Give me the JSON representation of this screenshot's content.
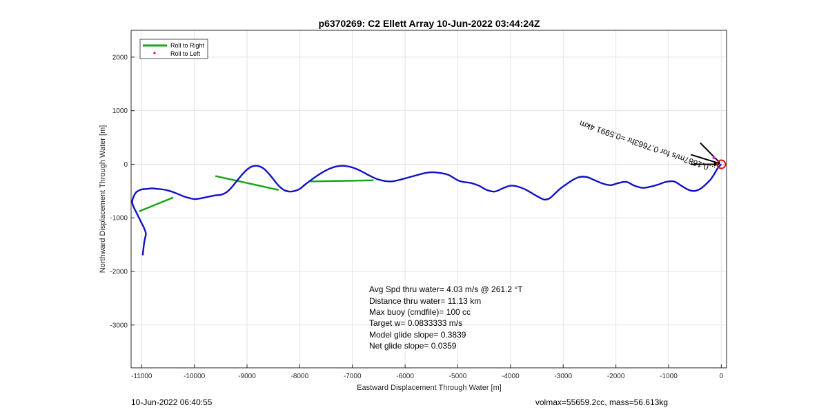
{
  "chart_data": {
    "type": "line",
    "title": "p6370269: C2 Ellett Array 10-Jun-2022 03:44:24Z",
    "xlabel": "Eastward Displacement Through Water [m]",
    "ylabel": "Northward Displacement Through Water [m]",
    "xlim": [
      -11200,
      100
    ],
    "ylim": [
      -3800,
      2500
    ],
    "xticks": [
      -11000,
      -10000,
      -9000,
      -8000,
      -7000,
      -6000,
      -5000,
      -4000,
      -3000,
      -2000,
      -1000,
      0
    ],
    "yticks": [
      2000,
      1000,
      0,
      -1000,
      -2000,
      -3000
    ],
    "grid": true,
    "legend_position": "top-left",
    "legend": [
      "Roll to Right",
      "Roll to Left"
    ],
    "series": [
      {
        "name": "track",
        "color": "#1010c8",
        "x": [
          0,
          -60,
          -120,
          -200,
          -300,
          -400,
          -520,
          -640,
          -760,
          -900,
          -1050,
          -1200,
          -1350,
          -1500,
          -1650,
          -1800,
          -1950,
          -2100,
          -2250,
          -2400,
          -2550,
          -2700,
          -2830,
          -2950,
          -3050,
          -3150,
          -3250,
          -3350,
          -3450,
          -3560,
          -3700,
          -3850,
          -4000,
          -4150,
          -4300,
          -4450,
          -4600,
          -4750,
          -4900,
          -5000,
          -5100,
          -5200,
          -5350,
          -5500,
          -5650,
          -5800,
          -5950,
          -6100,
          -6250,
          -6400,
          -6550,
          -6700,
          -6850,
          -7000,
          -7150,
          -7300,
          -7450,
          -7600,
          -7750,
          -7900,
          -8000,
          -8100,
          -8200,
          -8300,
          -8400,
          -8500,
          -8600,
          -8700,
          -8800,
          -8900,
          -9000,
          -9100,
          -9200,
          -9300,
          -9400,
          -9500,
          -9600,
          -9700,
          -9800,
          -9900,
          -10000,
          -10100,
          -10200,
          -10300,
          -10400,
          -10500,
          -10600,
          -10700,
          -10800,
          -10900,
          -11000,
          -11100,
          -11150,
          -11180,
          -11150,
          -11100,
          -11050,
          -11000,
          -10950,
          -10920,
          -10950,
          -10980
        ],
        "y": [
          0,
          -60,
          -160,
          -280,
          -380,
          -460,
          -500,
          -470,
          -400,
          -320,
          -330,
          -380,
          -420,
          -440,
          -400,
          -330,
          -350,
          -390,
          -360,
          -300,
          -240,
          -240,
          -300,
          -380,
          -450,
          -540,
          -630,
          -660,
          -620,
          -560,
          -480,
          -420,
          -400,
          -450,
          -510,
          -480,
          -400,
          -350,
          -330,
          -300,
          -240,
          -190,
          -160,
          -150,
          -170,
          -210,
          -250,
          -290,
          -320,
          -310,
          -270,
          -200,
          -120,
          -60,
          -30,
          -40,
          -90,
          -170,
          -270,
          -380,
          -460,
          -500,
          -510,
          -480,
          -400,
          -280,
          -160,
          -70,
          -30,
          -40,
          -100,
          -200,
          -320,
          -440,
          -530,
          -570,
          -580,
          -600,
          -620,
          -640,
          -650,
          -630,
          -600,
          -560,
          -520,
          -490,
          -470,
          -460,
          -450,
          -460,
          -470,
          -520,
          -600,
          -700,
          -800,
          -900,
          -1000,
          -1100,
          -1200,
          -1300,
          -1450,
          -1700
        ]
      }
    ],
    "roll_to_right_segments": [
      {
        "x": [
          -9600,
          -8400
        ],
        "y": [
          -220,
          -480
        ]
      },
      {
        "x": [
          -10400,
          -11050
        ],
        "y": [
          -620,
          -880
        ]
      },
      {
        "x": [
          -7800,
          -6600
        ],
        "y": [
          -320,
          -300
        ]
      }
    ],
    "current_arrow_label": "...0.1687m/s for 0.7663hr =0.5991 4km",
    "annotations": [
      "Avg Spd thru water=  4.03 m/s @ 261.2 °T",
      "Distance thru water= 11.13 km",
      "Max buoy (cmdfile)= 100 cc",
      "Target w= 0.0833333 m/s",
      "Model glide slope= 0.3839",
      "Net glide slope= 0.0359"
    ]
  },
  "footer": {
    "left": "10-Jun-2022 06:40:55",
    "right": "volmax=55659.2cc, mass=56.613kg"
  }
}
